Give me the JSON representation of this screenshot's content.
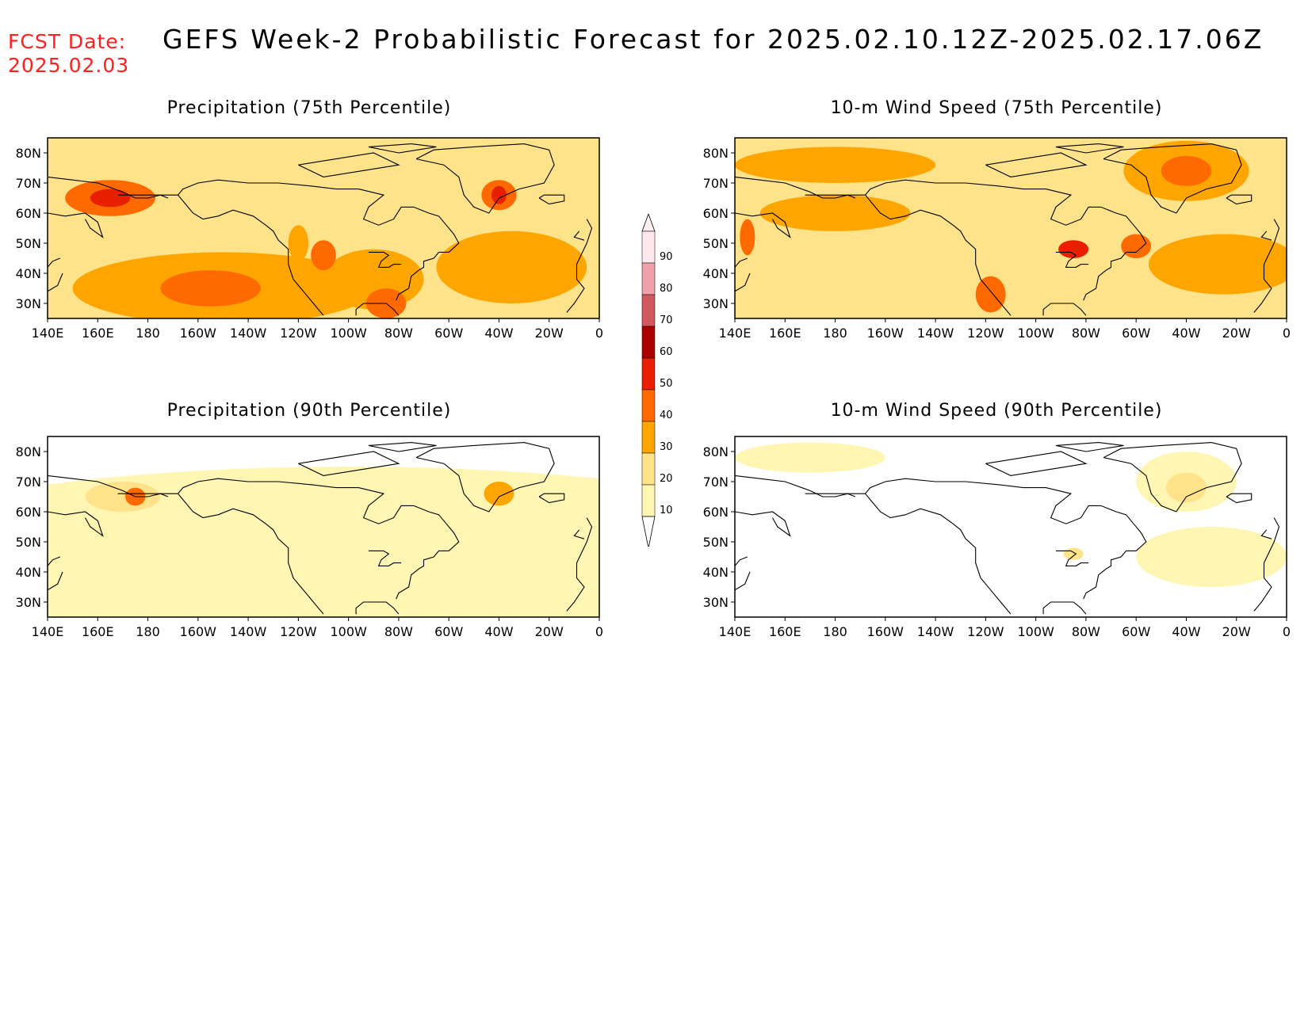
{
  "fcst_label": "FCST Date:",
  "fcst_date": "2025.02.03",
  "title": "GEFS Week-2 Probabilistic Forecast for 2025.02.10.12Z-2025.02.17.06Z",
  "panels": [
    {
      "title": "Precipitation (75th Percentile)"
    },
    {
      "title": "10-m Wind Speed (75th Percentile)"
    },
    {
      "title": "Precipitation (90th Percentile)"
    },
    {
      "title": "10-m Wind Speed (90th Percentile)"
    }
  ],
  "x_ticks": [
    "140E",
    "160E",
    "180",
    "160W",
    "140W",
    "120W",
    "100W",
    "80W",
    "60W",
    "40W",
    "20W",
    "0"
  ],
  "y_ticks": [
    "80N",
    "70N",
    "60N",
    "50N",
    "40N",
    "30N"
  ],
  "colorbar": {
    "levels": [
      "10",
      "20",
      "30",
      "40",
      "50",
      "60",
      "70",
      "80",
      "90"
    ],
    "colors": [
      "#fff6b4",
      "#ffe38a",
      "#ffa500",
      "#ff6a00",
      "#e82000",
      "#aa0000",
      "#d0585e",
      "#f0a0a8",
      "#fde8ec"
    ]
  }
}
